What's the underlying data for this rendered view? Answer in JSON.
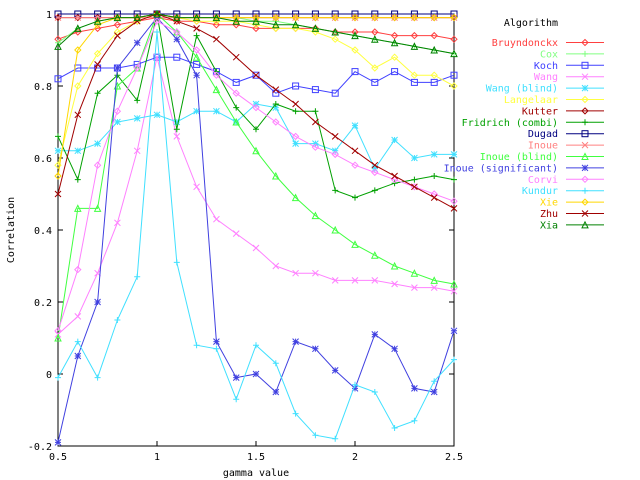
{
  "chart_data": {
    "type": "line",
    "xlabel": "gamma value",
    "ylabel": "Correlation",
    "xlim": [
      0.5,
      2.5
    ],
    "ylim": [
      -0.2,
      1.0
    ],
    "xticks": [
      "0.5",
      "1",
      "1.5",
      "2",
      "2.5"
    ],
    "xtick_values": [
      0.5,
      1.0,
      1.5,
      2.0,
      2.5
    ],
    "yticks": [
      "-0.2",
      "0",
      "0.2",
      "0.4",
      "0.6",
      "0.8",
      "1"
    ],
    "ytick_values": [
      -0.2,
      0,
      0.2,
      0.4,
      0.6,
      0.8,
      1.0
    ],
    "grid": false,
    "legend_title": "Algorithm",
    "legend_position": "right",
    "x": [
      0.5,
      0.6,
      0.7,
      0.8,
      0.9,
      1.0,
      1.1,
      1.2,
      1.3,
      1.4,
      1.5,
      1.6,
      1.7,
      1.8,
      1.9,
      2.0,
      2.1,
      2.2,
      2.3,
      2.4,
      2.5
    ],
    "series": [
      {
        "name": "Bruyndonckx",
        "color": "#ff4040",
        "marker": "diamond",
        "values": [
          0.93,
          0.95,
          0.96,
          0.97,
          0.98,
          0.99,
          0.98,
          0.98,
          0.97,
          0.97,
          0.96,
          0.96,
          0.96,
          0.96,
          0.95,
          0.95,
          0.95,
          0.94,
          0.94,
          0.94,
          0.93
        ]
      },
      {
        "name": "Cox",
        "color": "#80ff80",
        "marker": "plus",
        "values": [
          0.92,
          0.96,
          0.98,
          0.99,
          0.99,
          1.0,
          0.99,
          0.99,
          0.99,
          0.99,
          0.98,
          0.98,
          0.97,
          0.96,
          0.95,
          0.94,
          0.93,
          0.92,
          0.91,
          0.9,
          0.89
        ]
      },
      {
        "name": "Koch",
        "color": "#4040ff",
        "marker": "square",
        "values": [
          0.82,
          0.85,
          0.85,
          0.85,
          0.86,
          0.88,
          0.88,
          0.86,
          0.84,
          0.81,
          0.83,
          0.78,
          0.8,
          0.79,
          0.78,
          0.84,
          0.81,
          0.84,
          0.81,
          0.81,
          0.83
        ]
      },
      {
        "name": "Wang",
        "color": "#ff80ff",
        "marker": "x",
        "values": [
          0.11,
          0.16,
          0.28,
          0.42,
          0.62,
          0.88,
          0.66,
          0.52,
          0.43,
          0.39,
          0.35,
          0.3,
          0.28,
          0.28,
          0.26,
          0.26,
          0.26,
          0.25,
          0.24,
          0.24,
          0.23
        ]
      },
      {
        "name": "Wang (blind)",
        "color": "#40e0ff",
        "marker": "star",
        "values": [
          0.62,
          0.62,
          0.64,
          0.7,
          0.71,
          0.72,
          0.7,
          0.73,
          0.73,
          0.7,
          0.75,
          0.74,
          0.64,
          0.64,
          0.62,
          0.69,
          0.57,
          0.65,
          0.6,
          0.61,
          0.61
        ]
      },
      {
        "name": "Langelaar",
        "color": "#ffff40",
        "marker": "diamond",
        "values": [
          0.58,
          0.8,
          0.89,
          0.95,
          0.98,
          1.0,
          0.99,
          0.98,
          0.98,
          0.98,
          0.97,
          0.96,
          0.96,
          0.95,
          0.93,
          0.9,
          0.85,
          0.88,
          0.83,
          0.83,
          0.8
        ]
      },
      {
        "name": "Kutter",
        "color": "#a00000",
        "marker": "diamond",
        "values": [
          0.99,
          0.99,
          0.99,
          0.99,
          0.99,
          1.0,
          0.99,
          0.99,
          0.99,
          0.99,
          0.99,
          0.99,
          0.99,
          0.99,
          0.99,
          0.99,
          0.99,
          0.99,
          0.99,
          0.99,
          0.99
        ]
      },
      {
        "name": "Fridrich (combi)",
        "color": "#00a000",
        "marker": "plus",
        "values": [
          0.66,
          0.54,
          0.78,
          0.83,
          0.76,
          1.0,
          0.68,
          0.94,
          0.84,
          0.74,
          0.68,
          0.75,
          0.73,
          0.73,
          0.51,
          0.49,
          0.51,
          0.53,
          0.54,
          0.55,
          0.54
        ]
      },
      {
        "name": "Dugad",
        "color": "#000080",
        "marker": "square",
        "values": [
          1.0,
          1.0,
          1.0,
          1.0,
          1.0,
          1.0,
          1.0,
          1.0,
          1.0,
          1.0,
          1.0,
          1.0,
          1.0,
          1.0,
          1.0,
          1.0,
          1.0,
          1.0,
          1.0,
          1.0,
          1.0
        ]
      },
      {
        "name": "Inoue",
        "color": "#ff8080",
        "marker": "x",
        "values": [
          0.99,
          0.99,
          0.99,
          0.99,
          0.99,
          0.99,
          0.99,
          0.99,
          0.99,
          0.99,
          0.99,
          0.99,
          0.99,
          0.99,
          0.99,
          0.99,
          0.99,
          0.99,
          0.99,
          0.99,
          0.99
        ]
      },
      {
        "name": "Inoue (blind)",
        "color": "#40ff40",
        "marker": "triangle",
        "values": [
          0.1,
          0.46,
          0.46,
          0.8,
          0.85,
          1.0,
          0.95,
          0.88,
          0.79,
          0.7,
          0.62,
          0.55,
          0.49,
          0.44,
          0.4,
          0.36,
          0.33,
          0.3,
          0.28,
          0.26,
          0.25
        ]
      },
      {
        "name": "Inoue (significant)",
        "color": "#4040e0",
        "marker": "star",
        "values": [
          -0.19,
          0.05,
          0.2,
          0.85,
          0.92,
          0.99,
          0.93,
          0.83,
          0.09,
          -0.01,
          0.0,
          -0.05,
          0.09,
          0.07,
          0.01,
          -0.04,
          0.11,
          0.07,
          -0.04,
          -0.05,
          0.12
        ]
      },
      {
        "name": "Corvi",
        "color": "#ff80ff",
        "marker": "diamond",
        "values": [
          0.12,
          0.29,
          0.58,
          0.73,
          0.85,
          0.98,
          0.95,
          0.9,
          0.83,
          0.78,
          0.74,
          0.7,
          0.66,
          0.63,
          0.61,
          0.58,
          0.56,
          0.54,
          0.52,
          0.5,
          0.48
        ]
      },
      {
        "name": "Kundur",
        "color": "#40e0ff",
        "marker": "plus",
        "values": [
          -0.01,
          0.09,
          -0.01,
          0.15,
          0.27,
          0.95,
          0.31,
          0.08,
          0.07,
          -0.07,
          0.08,
          0.03,
          -0.11,
          -0.17,
          -0.18,
          -0.03,
          -0.05,
          -0.15,
          -0.13,
          -0.02,
          0.04
        ]
      },
      {
        "name": "Xie",
        "color": "#ffd700",
        "marker": "diamond",
        "values": [
          0.55,
          0.9,
          0.97,
          0.99,
          0.99,
          1.0,
          0.99,
          0.99,
          0.99,
          0.99,
          0.99,
          0.99,
          0.99,
          0.99,
          0.99,
          0.99,
          0.99,
          0.99,
          0.99,
          0.99,
          0.99
        ]
      },
      {
        "name": "Zhu",
        "color": "#a00000",
        "marker": "x",
        "values": [
          0.5,
          0.72,
          0.86,
          0.94,
          0.98,
          1.0,
          0.98,
          0.96,
          0.93,
          0.88,
          0.83,
          0.79,
          0.75,
          0.7,
          0.66,
          0.62,
          0.58,
          0.55,
          0.52,
          0.49,
          0.46
        ]
      },
      {
        "name": "Xia",
        "color": "#008000",
        "marker": "triangle",
        "values": [
          0.91,
          0.96,
          0.98,
          0.99,
          0.99,
          1.0,
          0.99,
          0.99,
          0.99,
          0.98,
          0.98,
          0.97,
          0.97,
          0.96,
          0.95,
          0.94,
          0.93,
          0.92,
          0.91,
          0.9,
          0.89
        ]
      }
    ]
  }
}
